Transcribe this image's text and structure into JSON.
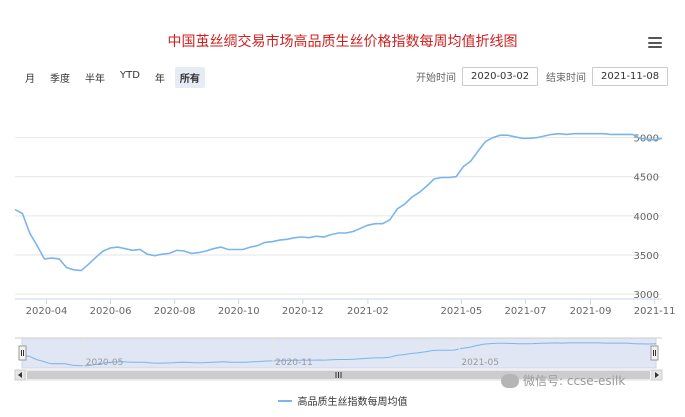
{
  "title": "中国茧丝绸交易市场高品质生丝价格指数每周均值折线图",
  "menu_icon": "hamburger-menu-icon",
  "range_selector": {
    "buttons": [
      "月",
      "季度",
      "半年",
      "YTD",
      "年",
      "所有"
    ],
    "active": "所有"
  },
  "date_inputs": {
    "start_label": "开始时间",
    "start_value": "2020-03-02",
    "end_label": "结束时间",
    "end_value": "2021-11-08"
  },
  "navigator": {
    "labels": [
      "2020-05",
      "2020-11",
      "2021-05"
    ],
    "scroll_icon": "scrollbar-grip-icon"
  },
  "watermark": {
    "text": "微信号: ccse-esilk",
    "icon": "wechat-icon"
  },
  "colors": {
    "line": "#7cb5ec",
    "title": "#d21f1f",
    "navigator_fill": "#ccd6eb"
  },
  "chart_data": {
    "type": "line",
    "title": "中国茧丝绸交易市场高品质生丝价格指数每周均值折线图",
    "x_axis_type": "datetime",
    "x_ticks": [
      "2020-04",
      "2020-06",
      "2020-08",
      "2020-10",
      "2020-12",
      "2021-02",
      "2021-05",
      "2021-07",
      "2021-09",
      "2021-11"
    ],
    "y_ticks": [
      3000,
      3500,
      4000,
      4500,
      5000
    ],
    "ylim": [
      2950,
      5250
    ],
    "y_axis_side": "right",
    "grid": "horizontal",
    "legend_position": "bottom-center",
    "series": [
      {
        "name": "高品质生丝指数每周均值",
        "x": [
          "2020-03-02",
          "2020-03-09",
          "2020-03-16",
          "2020-03-23",
          "2020-03-30",
          "2020-04-06",
          "2020-04-13",
          "2020-04-20",
          "2020-04-27",
          "2020-05-04",
          "2020-05-11",
          "2020-05-18",
          "2020-05-25",
          "2020-06-01",
          "2020-06-08",
          "2020-06-15",
          "2020-06-22",
          "2020-06-29",
          "2020-07-06",
          "2020-07-13",
          "2020-07-20",
          "2020-07-27",
          "2020-08-03",
          "2020-08-10",
          "2020-08-17",
          "2020-08-24",
          "2020-08-31",
          "2020-09-07",
          "2020-09-14",
          "2020-09-21",
          "2020-09-28",
          "2020-10-05",
          "2020-10-12",
          "2020-10-19",
          "2020-10-26",
          "2020-11-02",
          "2020-11-09",
          "2020-11-16",
          "2020-11-23",
          "2020-11-30",
          "2020-12-07",
          "2020-12-14",
          "2020-12-21",
          "2020-12-28",
          "2021-01-04",
          "2021-01-11",
          "2021-01-18",
          "2021-01-25",
          "2021-02-01",
          "2021-02-08",
          "2021-02-15",
          "2021-02-22",
          "2021-03-01",
          "2021-03-08",
          "2021-03-15",
          "2021-03-22",
          "2021-03-29",
          "2021-04-05",
          "2021-04-12",
          "2021-04-19",
          "2021-04-26",
          "2021-05-03",
          "2021-05-10",
          "2021-05-17",
          "2021-05-24",
          "2021-05-31",
          "2021-06-07",
          "2021-06-14",
          "2021-06-21",
          "2021-06-28",
          "2021-07-05",
          "2021-07-12",
          "2021-07-19",
          "2021-07-26",
          "2021-08-02",
          "2021-08-09",
          "2021-08-16",
          "2021-08-23",
          "2021-08-30",
          "2021-09-06",
          "2021-09-13",
          "2021-09-20",
          "2021-09-27",
          "2021-10-04",
          "2021-10-11",
          "2021-10-18",
          "2021-10-25",
          "2021-11-01",
          "2021-11-08"
        ],
        "y": [
          4080,
          4030,
          3780,
          3620,
          3450,
          3460,
          3450,
          3340,
          3310,
          3300,
          3380,
          3470,
          3550,
          3590,
          3600,
          3580,
          3560,
          3570,
          3510,
          3490,
          3510,
          3520,
          3560,
          3550,
          3520,
          3530,
          3550,
          3580,
          3600,
          3570,
          3570,
          3570,
          3600,
          3620,
          3660,
          3670,
          3690,
          3700,
          3720,
          3730,
          3720,
          3740,
          3730,
          3760,
          3780,
          3780,
          3800,
          3840,
          3880,
          3900,
          3900,
          3950,
          4090,
          4150,
          4240,
          4300,
          4380,
          4470,
          4490,
          4490,
          4500,
          4630,
          4700,
          4830,
          4950,
          5000,
          5030,
          5030,
          5010,
          4990,
          4990,
          5000,
          5020,
          5040,
          5050,
          5040,
          5050,
          5050,
          5050,
          5050,
          5050,
          5040,
          5040,
          5040,
          5040,
          4990,
          4980,
          4970,
          4990
        ]
      }
    ],
    "navigator_x_labels": [
      "2020-05",
      "2020-11",
      "2021-05"
    ]
  },
  "legend": {
    "label": "高品质生丝指数每周均值"
  }
}
